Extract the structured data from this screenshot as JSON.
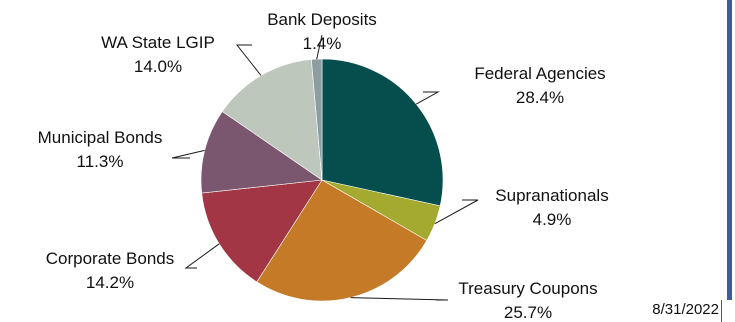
{
  "chart_data": {
    "type": "pie",
    "title": "",
    "slices": [
      {
        "label": "Federal Agencies",
        "value": 28.4,
        "display": "28.4%",
        "color": "#064e4e"
      },
      {
        "label": "Supranationals",
        "value": 4.9,
        "display": "4.9%",
        "color": "#a3aa2f"
      },
      {
        "label": "Treasury Coupons",
        "value": 25.7,
        "display": "25.7%",
        "color": "#c47a27"
      },
      {
        "label": "Corporate Bonds",
        "value": 14.2,
        "display": "14.2%",
        "color": "#a23645"
      },
      {
        "label": "Municipal Bonds",
        "value": 11.3,
        "display": "11.3%",
        "color": "#7b566f"
      },
      {
        "label": "WA State LGIP",
        "value": 14.0,
        "display": "14.0%",
        "color": "#bdc7bc"
      },
      {
        "label": "Bank Deposits",
        "value": 1.4,
        "display": "1.4%",
        "color": "#8c9ea0"
      }
    ]
  },
  "as_of_date": "8/31/2022",
  "colors": {
    "right_bar": "#3f5a9c",
    "leader_line": "#1a1a1a"
  }
}
